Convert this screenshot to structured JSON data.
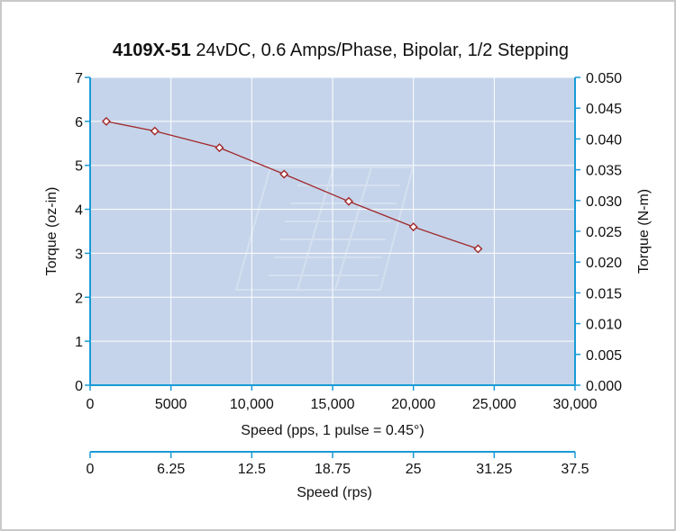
{
  "chart_data": {
    "type": "line",
    "title_bold": "4109X-51",
    "title_rest": " 24vDC, 0.6 Amps/Phase, Bipolar, 1/2 Stepping",
    "xlabel": "Speed (pps, 1 pulse = 0.45°)",
    "ylabel_left": "Torque (oz-in)",
    "ylabel_right": "Torque (N-m)",
    "secondary_xlabel": "Speed (rps)",
    "xlim": [
      0,
      30000
    ],
    "ylim": [
      0,
      7
    ],
    "ylim_right": [
      0,
      0.05
    ],
    "x_ticks": [
      "0",
      "5000",
      "10,000",
      "15,000",
      "20,000",
      "25,000",
      "30,000"
    ],
    "y_ticks": [
      "0",
      "1",
      "2",
      "3",
      "4",
      "5",
      "6",
      "7"
    ],
    "y_right_ticks": [
      "0.000",
      "0.005",
      "0.010",
      "0.015",
      "0.020",
      "0.025",
      "0.030",
      "0.035",
      "0.040",
      "0.045",
      "0.050"
    ],
    "rps_ticks": [
      "0",
      "6.25",
      "12.5",
      "18.75",
      "25",
      "31.25",
      "37.5"
    ],
    "grid": true,
    "series": [
      {
        "x": [
          1000,
          4000,
          8000,
          12000,
          16000,
          20000,
          24000
        ],
        "y": [
          6.0,
          5.78,
          5.4,
          4.8,
          4.18,
          3.6,
          3.1
        ]
      }
    ],
    "colors": {
      "plot_bg": "#c5d4ea",
      "grid": "#ffffff",
      "axis": "#1a9ad6",
      "line": "#a0282b",
      "text": "#111111"
    }
  }
}
